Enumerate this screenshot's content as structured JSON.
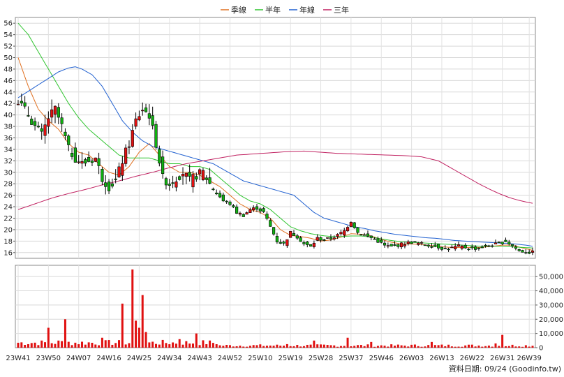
{
  "chart_data": {
    "type": "candlestick",
    "legend": [
      {
        "name": "季線",
        "color": "#e07020"
      },
      {
        "name": "半年",
        "color": "#2ec42e"
      },
      {
        "name": "年線",
        "color": "#2060d0"
      },
      {
        "name": "三年",
        "color": "#c02060"
      }
    ],
    "price_axis": {
      "min": 15,
      "max": 57,
      "ticks": [
        16,
        18,
        20,
        22,
        24,
        26,
        28,
        30,
        32,
        34,
        36,
        38,
        40,
        42,
        44,
        46,
        48,
        50,
        52,
        54,
        56
      ]
    },
    "volume_axis": {
      "min": 0,
      "max": 55000,
      "ticks": [
        0,
        10000,
        20000,
        30000,
        40000,
        50000
      ],
      "tick_labels": [
        "0",
        "10,000",
        "20,000",
        "30,000",
        "40,000",
        "50,000"
      ]
    },
    "x_labels": [
      "23W41",
      "23W50",
      "24W07",
      "24W16",
      "24W25",
      "24W34",
      "24W43",
      "24W52",
      "25W10",
      "25W19",
      "25W28",
      "25W37",
      "25W46",
      "26W03",
      "26W13",
      "26W22",
      "26W31",
      "26W39"
    ],
    "x_label_index": [
      0,
      9,
      18,
      27,
      36,
      45,
      54,
      63,
      72,
      81,
      90,
      99,
      108,
      117,
      126,
      135,
      144,
      152
    ],
    "weeks": 154,
    "price_keypoints": [
      [
        0,
        42.5
      ],
      [
        3,
        40
      ],
      [
        5,
        38
      ],
      [
        7,
        36.5
      ],
      [
        9,
        39.5
      ],
      [
        11,
        41
      ],
      [
        13,
        38
      ],
      [
        15,
        34
      ],
      [
        17,
        32.5
      ],
      [
        19,
        31.5
      ],
      [
        21,
        32
      ],
      [
        23,
        32.5
      ],
      [
        25,
        29
      ],
      [
        27,
        27.5
      ],
      [
        29,
        28.5
      ],
      [
        31,
        32
      ],
      [
        33,
        35
      ],
      [
        35,
        39
      ],
      [
        37,
        41
      ],
      [
        39,
        40
      ],
      [
        41,
        35
      ],
      [
        43,
        29
      ],
      [
        45,
        28
      ],
      [
        47,
        29
      ],
      [
        49,
        30
      ],
      [
        51,
        28.5
      ],
      [
        53,
        29.5
      ],
      [
        55,
        30
      ],
      [
        57,
        28
      ],
      [
        59,
        26.5
      ],
      [
        61,
        25
      ],
      [
        63,
        24.5
      ],
      [
        65,
        23
      ],
      [
        67,
        22.5
      ],
      [
        69,
        23.5
      ],
      [
        71,
        23.8
      ],
      [
        73,
        23
      ],
      [
        75,
        20.5
      ],
      [
        77,
        18
      ],
      [
        79,
        17.5
      ],
      [
        81,
        19.5
      ],
      [
        83,
        18.8
      ],
      [
        85,
        17.5
      ],
      [
        87,
        17
      ],
      [
        89,
        18.5
      ],
      [
        91,
        18.2
      ],
      [
        93,
        18.5
      ],
      [
        95,
        19
      ],
      [
        97,
        19.8
      ],
      [
        99,
        21.5
      ],
      [
        101,
        19.5
      ],
      [
        103,
        19
      ],
      [
        105,
        18.6
      ],
      [
        107,
        18
      ],
      [
        109,
        17.2
      ],
      [
        111,
        17
      ],
      [
        113,
        17.3
      ],
      [
        115,
        17.6
      ],
      [
        117,
        17.8
      ],
      [
        119,
        17.6
      ],
      [
        121,
        17.4
      ],
      [
        123,
        17.2
      ],
      [
        125,
        17
      ],
      [
        127,
        16.6
      ],
      [
        129,
        16.8
      ],
      [
        131,
        17.1
      ],
      [
        133,
        16.9
      ],
      [
        135,
        16.7
      ],
      [
        137,
        16.8
      ],
      [
        139,
        17.1
      ],
      [
        141,
        17.3
      ],
      [
        143,
        17.6
      ],
      [
        145,
        18
      ],
      [
        147,
        17.2
      ],
      [
        149,
        16.3
      ],
      [
        151,
        16.1
      ],
      [
        153,
        16
      ]
    ],
    "volume_spikes": [
      [
        9,
        14000
      ],
      [
        12,
        5000
      ],
      [
        14,
        20000
      ],
      [
        25,
        7000
      ],
      [
        31,
        31000
      ],
      [
        34,
        55000
      ],
      [
        35,
        19000
      ],
      [
        36,
        14000
      ],
      [
        37,
        37000
      ],
      [
        38,
        11000
      ],
      [
        48,
        6000
      ],
      [
        53,
        10000
      ],
      [
        80,
        2500
      ],
      [
        88,
        5000
      ],
      [
        98,
        7000
      ],
      [
        105,
        4000
      ],
      [
        123,
        4000
      ],
      [
        142,
        3000
      ],
      [
        144,
        9000
      ]
    ],
    "moving_averages": {
      "季線": [
        [
          0,
          50
        ],
        [
          3,
          45
        ],
        [
          6,
          41
        ],
        [
          9,
          39
        ],
        [
          12,
          37.5
        ],
        [
          15,
          35
        ],
        [
          18,
          33.5
        ],
        [
          21,
          33
        ],
        [
          24,
          31.5
        ],
        [
          27,
          30
        ],
        [
          30,
          29.5
        ],
        [
          33,
          31
        ],
        [
          36,
          33.5
        ],
        [
          39,
          35
        ],
        [
          42,
          33
        ],
        [
          45,
          31
        ],
        [
          48,
          30
        ],
        [
          51,
          30
        ],
        [
          54,
          29.5
        ],
        [
          57,
          28.5
        ],
        [
          60,
          27.5
        ],
        [
          63,
          26
        ],
        [
          66,
          24.5
        ],
        [
          69,
          23.5
        ],
        [
          72,
          23
        ],
        [
          75,
          22
        ],
        [
          78,
          20
        ],
        [
          81,
          19
        ],
        [
          84,
          18.8
        ],
        [
          87,
          18.5
        ],
        [
          90,
          18
        ],
        [
          93,
          18.2
        ],
        [
          96,
          18.7
        ],
        [
          99,
          19.3
        ],
        [
          102,
          19.2
        ],
        [
          105,
          18.9
        ],
        [
          108,
          18.3
        ],
        [
          111,
          17.8
        ],
        [
          114,
          17.5
        ],
        [
          117,
          17.5
        ],
        [
          120,
          17.4
        ],
        [
          123,
          17.2
        ],
        [
          126,
          17
        ],
        [
          129,
          16.9
        ],
        [
          132,
          16.9
        ],
        [
          135,
          16.9
        ],
        [
          138,
          16.9
        ],
        [
          141,
          17.1
        ],
        [
          144,
          17.3
        ],
        [
          147,
          17.3
        ],
        [
          150,
          16.8
        ],
        [
          153,
          16.4
        ]
      ],
      "半年": [
        [
          0,
          56
        ],
        [
          3,
          54
        ],
        [
          6,
          51
        ],
        [
          9,
          48
        ],
        [
          12,
          45
        ],
        [
          15,
          42
        ],
        [
          18,
          39.5
        ],
        [
          21,
          37.5
        ],
        [
          24,
          36
        ],
        [
          27,
          34.5
        ],
        [
          30,
          33
        ],
        [
          33,
          32.5
        ],
        [
          36,
          32.5
        ],
        [
          39,
          32.5
        ],
        [
          42,
          32
        ],
        [
          45,
          31.5
        ],
        [
          48,
          31.5
        ],
        [
          51,
          31
        ],
        [
          54,
          31
        ],
        [
          57,
          30.5
        ],
        [
          60,
          29
        ],
        [
          63,
          27.5
        ],
        [
          66,
          26
        ],
        [
          69,
          25
        ],
        [
          72,
          24.5
        ],
        [
          75,
          23.5
        ],
        [
          78,
          22
        ],
        [
          81,
          20.5
        ],
        [
          84,
          19.8
        ],
        [
          87,
          19.3
        ],
        [
          90,
          19
        ],
        [
          93,
          18.8
        ],
        [
          96,
          18.8
        ],
        [
          99,
          18.9
        ],
        [
          102,
          18.9
        ],
        [
          105,
          18.7
        ],
        [
          108,
          18.4
        ],
        [
          111,
          18.1
        ],
        [
          114,
          17.9
        ],
        [
          117,
          17.8
        ],
        [
          120,
          17.7
        ],
        [
          123,
          17.6
        ],
        [
          126,
          17.5
        ],
        [
          129,
          17.4
        ],
        [
          132,
          17.3
        ],
        [
          135,
          17.2
        ],
        [
          138,
          17.1
        ],
        [
          141,
          17.1
        ],
        [
          144,
          17.1
        ],
        [
          147,
          17
        ],
        [
          150,
          16.9
        ],
        [
          153,
          16.8
        ]
      ],
      "年線": [
        [
          0,
          43
        ],
        [
          4,
          44.5
        ],
        [
          8,
          46
        ],
        [
          12,
          47.5
        ],
        [
          15,
          48.2
        ],
        [
          17,
          48.4
        ],
        [
          19,
          48
        ],
        [
          22,
          47
        ],
        [
          25,
          45
        ],
        [
          28,
          42
        ],
        [
          31,
          39
        ],
        [
          34,
          37
        ],
        [
          37,
          35.5
        ],
        [
          40,
          34.5
        ],
        [
          43,
          34
        ],
        [
          46,
          33.5
        ],
        [
          49,
          33
        ],
        [
          52,
          32.5
        ],
        [
          55,
          32
        ],
        [
          58,
          31.5
        ],
        [
          61,
          30.5
        ],
        [
          64,
          29.5
        ],
        [
          67,
          28.5
        ],
        [
          70,
          28
        ],
        [
          73,
          27.5
        ],
        [
          76,
          27
        ],
        [
          79,
          26.5
        ],
        [
          82,
          26
        ],
        [
          85,
          24.5
        ],
        [
          88,
          23
        ],
        [
          91,
          22
        ],
        [
          94,
          21.5
        ],
        [
          97,
          21
        ],
        [
          100,
          20.5
        ],
        [
          103,
          20.2
        ],
        [
          106,
          19.8
        ],
        [
          109,
          19.5
        ],
        [
          112,
          19.2
        ],
        [
          115,
          19
        ],
        [
          118,
          18.8
        ],
        [
          121,
          18.6
        ],
        [
          124,
          18.5
        ],
        [
          127,
          18.3
        ],
        [
          130,
          18.1
        ],
        [
          133,
          18
        ],
        [
          136,
          17.9
        ],
        [
          139,
          17.8
        ],
        [
          142,
          17.7
        ],
        [
          145,
          17.6
        ],
        [
          148,
          17.5
        ],
        [
          151,
          17.3
        ],
        [
          153,
          17.1
        ]
      ],
      "三年": [
        [
          0,
          23.5
        ],
        [
          5,
          24.5
        ],
        [
          10,
          25.5
        ],
        [
          15,
          26.3
        ],
        [
          20,
          27
        ],
        [
          25,
          27.8
        ],
        [
          30,
          28.5
        ],
        [
          35,
          29.3
        ],
        [
          40,
          30
        ],
        [
          45,
          30.8
        ],
        [
          50,
          31.5
        ],
        [
          55,
          32
        ],
        [
          60,
          32.5
        ],
        [
          65,
          33
        ],
        [
          70,
          33.2
        ],
        [
          75,
          33.4
        ],
        [
          80,
          33.6
        ],
        [
          85,
          33.7
        ],
        [
          90,
          33.5
        ],
        [
          95,
          33.3
        ],
        [
          100,
          33.2
        ],
        [
          105,
          33.1
        ],
        [
          110,
          33
        ],
        [
          115,
          32.9
        ],
        [
          120,
          32.7
        ],
        [
          125,
          32
        ],
        [
          128,
          31
        ],
        [
          131,
          30
        ],
        [
          134,
          29
        ],
        [
          137,
          28
        ],
        [
          140,
          27.1
        ],
        [
          143,
          26.3
        ],
        [
          146,
          25.6
        ],
        [
          149,
          25.1
        ],
        [
          152,
          24.7
        ],
        [
          153,
          24.6
        ]
      ]
    }
  },
  "credit": "資料日期: 09/24  (Goodinfo.tw)"
}
